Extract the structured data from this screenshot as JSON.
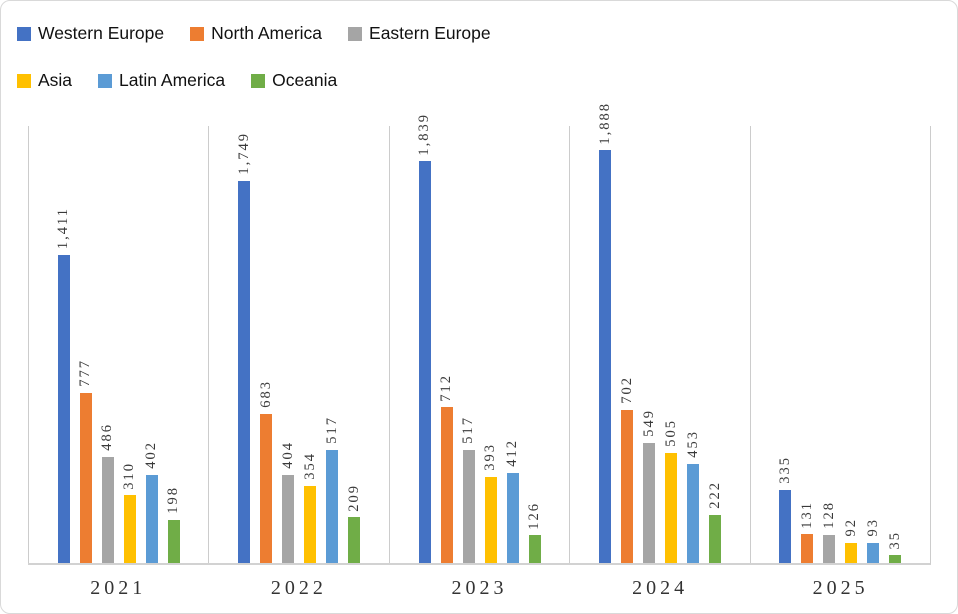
{
  "legend": {
    "items": [
      {
        "label": "Western Europe",
        "color": "#4472C4"
      },
      {
        "label": "North America",
        "color": "#ED7D31"
      },
      {
        "label": "Eastern Europe",
        "color": "#A5A5A5"
      },
      {
        "label": "Asia",
        "color": "#FFC000"
      },
      {
        "label": "Latin America",
        "color": "#5B9BD5"
      },
      {
        "label": "Oceania",
        "color": "#70AD47"
      }
    ]
  },
  "chart_data": {
    "type": "bar",
    "title": "",
    "xlabel": "",
    "ylabel": "",
    "categories": [
      "2021",
      "2022",
      "2023",
      "2024",
      "2025"
    ],
    "series": [
      {
        "name": "Western Europe",
        "color": "#4472C4",
        "values": [
          1411,
          1749,
          1839,
          1888,
          335
        ],
        "labels": [
          "1,411",
          "1,749",
          "1,839",
          "1,888",
          "335"
        ]
      },
      {
        "name": "North America",
        "color": "#ED7D31",
        "values": [
          777,
          683,
          712,
          702,
          131
        ],
        "labels": [
          "777",
          "683",
          "712",
          "702",
          "131"
        ]
      },
      {
        "name": "Eastern Europe",
        "color": "#A5A5A5",
        "values": [
          486,
          404,
          517,
          549,
          128
        ],
        "labels": [
          "486",
          "404",
          "517",
          "549",
          "128"
        ]
      },
      {
        "name": "Asia",
        "color": "#FFC000",
        "values": [
          310,
          354,
          393,
          505,
          92
        ],
        "labels": [
          "310",
          "354",
          "393",
          "505",
          "92"
        ]
      },
      {
        "name": "Latin America",
        "color": "#5B9BD5",
        "values": [
          402,
          517,
          412,
          453,
          93
        ],
        "labels": [
          "402",
          "517",
          "412",
          "453",
          "93"
        ]
      },
      {
        "name": "Oceania",
        "color": "#70AD47",
        "values": [
          198,
          209,
          126,
          222,
          35
        ],
        "labels": [
          "198",
          "209",
          "126",
          "222",
          "35"
        ]
      }
    ],
    "ylim": [
      0,
      2000
    ],
    "grid": "vertical-category-separators-only",
    "legend_position": "top-left-two-rows",
    "data_labels": "rotated-270-above-bars",
    "y_axis_visible": false
  }
}
